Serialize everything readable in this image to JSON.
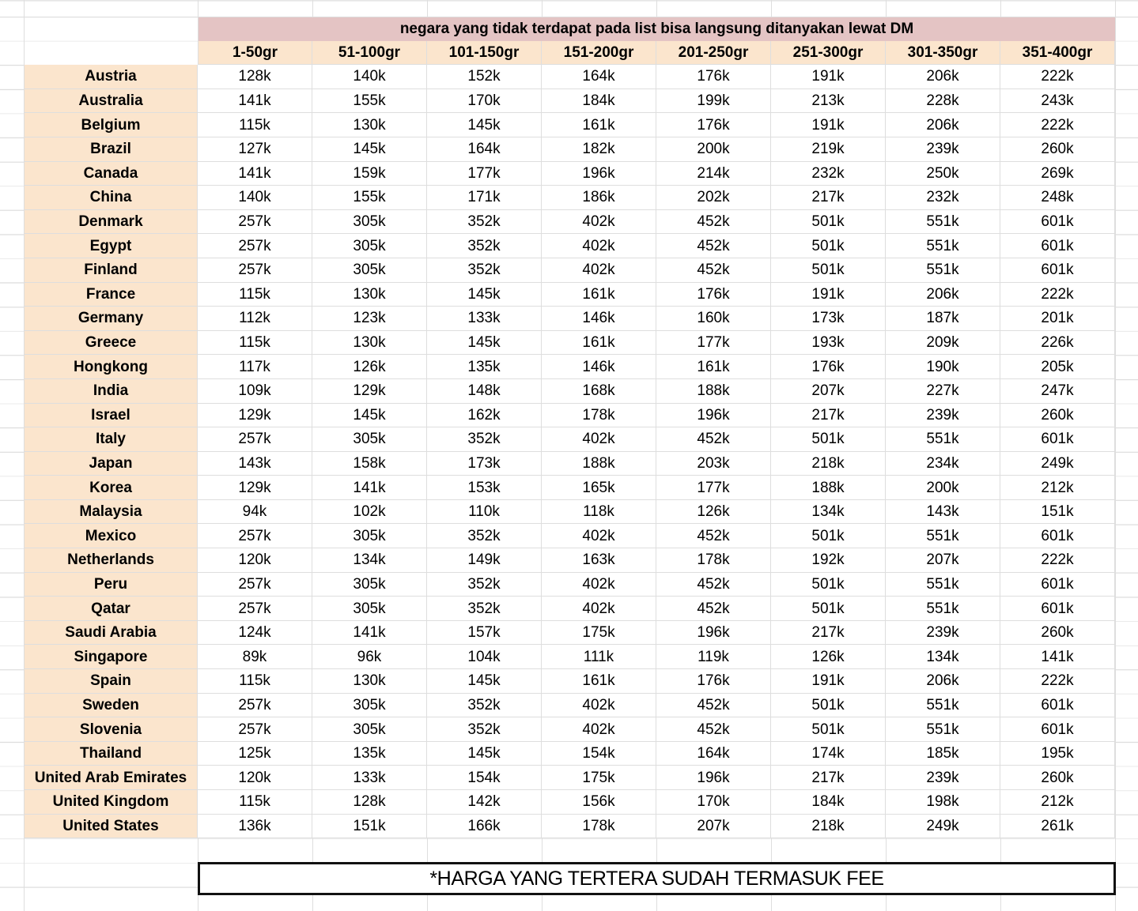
{
  "sheet": {
    "banner_note": "negara yang tidak terdapat pada list bisa langsung ditanyakan lewat DM",
    "weight_columns": [
      "1-50gr",
      "51-100gr",
      "101-150gr",
      "151-200gr",
      "201-250gr",
      "251-300gr",
      "301-350gr",
      "351-400gr"
    ],
    "countries": [
      {
        "name": "Austria",
        "prices": [
          "128k",
          "140k",
          "152k",
          "164k",
          "176k",
          "191k",
          "206k",
          "222k"
        ]
      },
      {
        "name": "Australia",
        "prices": [
          "141k",
          "155k",
          "170k",
          "184k",
          "199k",
          "213k",
          "228k",
          "243k"
        ]
      },
      {
        "name": "Belgium",
        "prices": [
          "115k",
          "130k",
          "145k",
          "161k",
          "176k",
          "191k",
          "206k",
          "222k"
        ]
      },
      {
        "name": "Brazil",
        "prices": [
          "127k",
          "145k",
          "164k",
          "182k",
          "200k",
          "219k",
          "239k",
          "260k"
        ]
      },
      {
        "name": "Canada",
        "prices": [
          "141k",
          "159k",
          "177k",
          "196k",
          "214k",
          "232k",
          "250k",
          "269k"
        ]
      },
      {
        "name": "China",
        "prices": [
          "140k",
          "155k",
          "171k",
          "186k",
          "202k",
          "217k",
          "232k",
          "248k"
        ]
      },
      {
        "name": "Denmark",
        "prices": [
          "257k",
          "305k",
          "352k",
          "402k",
          "452k",
          "501k",
          "551k",
          "601k"
        ]
      },
      {
        "name": "Egypt",
        "prices": [
          "257k",
          "305k",
          "352k",
          "402k",
          "452k",
          "501k",
          "551k",
          "601k"
        ]
      },
      {
        "name": "Finland",
        "prices": [
          "257k",
          "305k",
          "352k",
          "402k",
          "452k",
          "501k",
          "551k",
          "601k"
        ]
      },
      {
        "name": "France",
        "prices": [
          "115k",
          "130k",
          "145k",
          "161k",
          "176k",
          "191k",
          "206k",
          "222k"
        ]
      },
      {
        "name": "Germany",
        "prices": [
          "112k",
          "123k",
          "133k",
          "146k",
          "160k",
          "173k",
          "187k",
          "201k"
        ]
      },
      {
        "name": "Greece",
        "prices": [
          "115k",
          "130k",
          "145k",
          "161k",
          "177k",
          "193k",
          "209k",
          "226k"
        ]
      },
      {
        "name": "Hongkong",
        "prices": [
          "117k",
          "126k",
          "135k",
          "146k",
          "161k",
          "176k",
          "190k",
          "205k"
        ]
      },
      {
        "name": "India",
        "prices": [
          "109k",
          "129k",
          "148k",
          "168k",
          "188k",
          "207k",
          "227k",
          "247k"
        ]
      },
      {
        "name": "Israel",
        "prices": [
          "129k",
          "145k",
          "162k",
          "178k",
          "196k",
          "217k",
          "239k",
          "260k"
        ]
      },
      {
        "name": "Italy",
        "prices": [
          "257k",
          "305k",
          "352k",
          "402k",
          "452k",
          "501k",
          "551k",
          "601k"
        ]
      },
      {
        "name": "Japan",
        "prices": [
          "143k",
          "158k",
          "173k",
          "188k",
          "203k",
          "218k",
          "234k",
          "249k"
        ]
      },
      {
        "name": "Korea",
        "prices": [
          "129k",
          "141k",
          "153k",
          "165k",
          "177k",
          "188k",
          "200k",
          "212k"
        ]
      },
      {
        "name": "Malaysia",
        "prices": [
          "94k",
          "102k",
          "110k",
          "118k",
          "126k",
          "134k",
          "143k",
          "151k"
        ]
      },
      {
        "name": "Mexico",
        "prices": [
          "257k",
          "305k",
          "352k",
          "402k",
          "452k",
          "501k",
          "551k",
          "601k"
        ]
      },
      {
        "name": "Netherlands",
        "prices": [
          "120k",
          "134k",
          "149k",
          "163k",
          "178k",
          "192k",
          "207k",
          "222k"
        ]
      },
      {
        "name": "Peru",
        "prices": [
          "257k",
          "305k",
          "352k",
          "402k",
          "452k",
          "501k",
          "551k",
          "601k"
        ]
      },
      {
        "name": "Qatar",
        "prices": [
          "257k",
          "305k",
          "352k",
          "402k",
          "452k",
          "501k",
          "551k",
          "601k"
        ]
      },
      {
        "name": "Saudi Arabia",
        "prices": [
          "124k",
          "141k",
          "157k",
          "175k",
          "196k",
          "217k",
          "239k",
          "260k"
        ]
      },
      {
        "name": "Singapore",
        "prices": [
          "89k",
          "96k",
          "104k",
          "111k",
          "119k",
          "126k",
          "134k",
          "141k"
        ]
      },
      {
        "name": "Spain",
        "prices": [
          "115k",
          "130k",
          "145k",
          "161k",
          "176k",
          "191k",
          "206k",
          "222k"
        ]
      },
      {
        "name": "Sweden",
        "prices": [
          "257k",
          "305k",
          "352k",
          "402k",
          "452k",
          "501k",
          "551k",
          "601k"
        ]
      },
      {
        "name": "Slovenia",
        "prices": [
          "257k",
          "305k",
          "352k",
          "402k",
          "452k",
          "501k",
          "551k",
          "601k"
        ]
      },
      {
        "name": "Thailand",
        "prices": [
          "125k",
          "135k",
          "145k",
          "154k",
          "164k",
          "174k",
          "185k",
          "195k"
        ]
      },
      {
        "name": "United Arab Emirates",
        "prices": [
          "120k",
          "133k",
          "154k",
          "175k",
          "196k",
          "217k",
          "239k",
          "260k"
        ]
      },
      {
        "name": "United Kingdom",
        "prices": [
          "115k",
          "128k",
          "142k",
          "156k",
          "170k",
          "184k",
          "198k",
          "212k"
        ]
      },
      {
        "name": "United States",
        "prices": [
          "136k",
          "151k",
          "166k",
          "178k",
          "207k",
          "218k",
          "249k",
          "261k"
        ]
      }
    ],
    "footnote": "*HARGA YANG TERTERA SUDAH TERMASUK FEE",
    "colors": {
      "banner_bg": "#e4c4c4",
      "header_bg": "#fbe5cd",
      "country_bg": "#fbe5cd",
      "gridline": "#dedede",
      "footnote_border": "#111111"
    }
  }
}
